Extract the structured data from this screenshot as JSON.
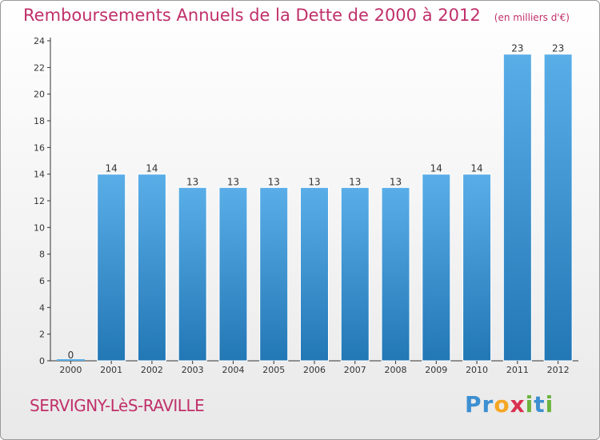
{
  "title": "Remboursements Annuels de la Dette de 2000 à 2012",
  "subtitle": "(en milliers d'€)",
  "commune": "SERVIGNY-LèS-RAVILLE",
  "logo": {
    "text": "Proxiti",
    "letters": [
      {
        "ch": "P",
        "color": "#3d8fd1"
      },
      {
        "ch": "r",
        "color": "#3d8fd1"
      },
      {
        "ch": "o",
        "color": "#f5a623"
      },
      {
        "ch": "x",
        "color": "#d9304f"
      },
      {
        "ch": "i",
        "color": "#6cb33e"
      },
      {
        "ch": "t",
        "color": "#3d8fd1"
      },
      {
        "ch": "i",
        "color": "#6cb33e"
      }
    ]
  },
  "colors": {
    "bar_top": "#5aaee8",
    "bar_bottom": "#2277b5",
    "title": "#c0306a"
  },
  "chart_data": {
    "type": "bar",
    "title": "Remboursements Annuels de la Dette de 2000 à 2012",
    "subtitle": "(en milliers d'€)",
    "xlabel": "",
    "ylabel": "",
    "categories": [
      "2000",
      "2001",
      "2002",
      "2003",
      "2004",
      "2005",
      "2006",
      "2007",
      "2008",
      "2009",
      "2010",
      "2011",
      "2012"
    ],
    "values": [
      0,
      14,
      14,
      13,
      13,
      13,
      13,
      13,
      13,
      14,
      14,
      23,
      23
    ],
    "ylim": [
      0,
      24
    ],
    "yticks": [
      0,
      2,
      4,
      6,
      8,
      10,
      12,
      14,
      16,
      18,
      20,
      22,
      24
    ],
    "grid": false,
    "legend": "none"
  }
}
